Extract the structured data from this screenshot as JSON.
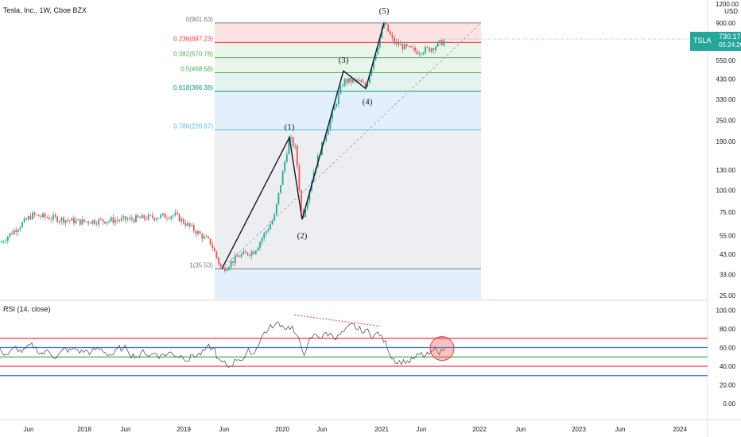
{
  "header": {
    "title": "Tesla, Inc., 1W, Cboe BZX"
  },
  "rsi_title": "RSI (14, close)",
  "price_tag": {
    "symbol": "TSLA",
    "price": "730.17",
    "timer": "05:24:20"
  },
  "axis_unit": {
    "top": "1200.00",
    "unit": "USD"
  },
  "colors": {
    "up": "#26a69a",
    "down": "#ef5350",
    "rsi_line": "#555555",
    "red_line": "#f23645",
    "blue_line": "#2962ff",
    "green_line": "#4caf50"
  },
  "chart_data": [
    {
      "type": "candlestick",
      "title": "Tesla, Inc., 1W, Cboe BZX",
      "y_scale": "log",
      "ylim": [
        25,
        1200
      ],
      "y_ticks": [
        "900.00",
        "700.00",
        "550.00",
        "430.00",
        "330.00",
        "250.00",
        "190.00",
        "130.00",
        "100.00",
        "75.00",
        "55.00",
        "43.00",
        "33.00",
        "25.00"
      ],
      "x_ticks": [
        "Jun",
        "2018",
        "Jun",
        "2019",
        "Jun",
        "2020",
        "Jun",
        "2021",
        "Jun",
        "2022",
        "Jun",
        "2023",
        "Jun",
        "2024"
      ],
      "fibonacci": [
        {
          "label": "0(901.63)",
          "level": 0,
          "price": 901.63,
          "color": "#787b86"
        },
        {
          "label": "0.236(697.23)",
          "level": 0.236,
          "price": 697.23,
          "color": "#f23645"
        },
        {
          "label": "0.382(570.78)",
          "level": 0.382,
          "price": 570.78,
          "color": "#4caf50"
        },
        {
          "label": "0.5(468.58)",
          "level": 0.5,
          "price": 468.58,
          "color": "#4caf50"
        },
        {
          "label": "0.618(366.38)",
          "level": 0.618,
          "price": 366.38,
          "color": "#089981"
        },
        {
          "label": "0.786(220.87)",
          "level": 0.786,
          "price": 220.87,
          "color": "#64b5f6"
        },
        {
          "label": "1(35.53)",
          "level": 1,
          "price": 35.53,
          "color": "#787b86"
        }
      ],
      "waves": [
        {
          "label": "(1)",
          "price": 200
        },
        {
          "label": "(2)",
          "price": 68
        },
        {
          "label": "(3)",
          "price": 480
        },
        {
          "label": "(4)",
          "price": 380
        },
        {
          "label": "(5)",
          "price": 900
        }
      ],
      "last_price": 730.17
    },
    {
      "type": "line",
      "title": "RSI (14, close)",
      "ylim": [
        0,
        100
      ],
      "y_ticks": [
        "100.00",
        "80.00",
        "60.00",
        "40.00",
        "20.00",
        "0.00"
      ],
      "levels": [
        {
          "value": 70,
          "color": "#f23645"
        },
        {
          "value": 60,
          "color": "#2962ff"
        },
        {
          "value": 50,
          "color": "#4caf50"
        },
        {
          "value": 40,
          "color": "#f23645"
        },
        {
          "value": 30,
          "color": "#2962ff"
        }
      ]
    }
  ]
}
